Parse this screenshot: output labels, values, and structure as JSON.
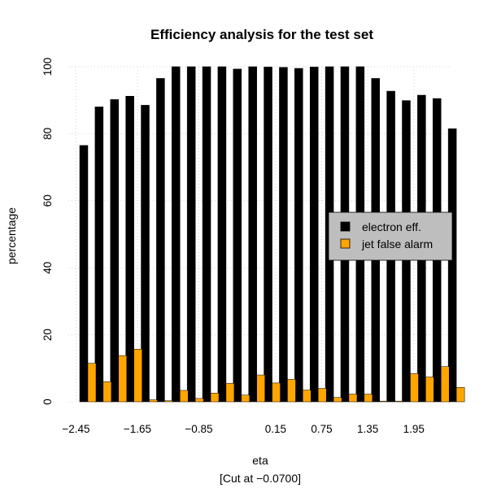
{
  "chart_data": {
    "type": "bar",
    "title": "Efficiency analysis for the test set",
    "xlabel": "eta",
    "subtitle": "[Cut at −0.0700]",
    "ylabel": "percentage",
    "ylim": [
      0,
      100
    ],
    "yticks": [
      "0",
      "20",
      "40",
      "60",
      "80",
      "100"
    ],
    "xtick_labels": [
      {
        "label": "−2.45",
        "index": 0
      },
      {
        "label": "−1.65",
        "index": 4
      },
      {
        "label": "−0.85",
        "index": 8
      },
      {
        "label": "0.15",
        "index": 13
      },
      {
        "label": "0.75",
        "index": 16
      },
      {
        "label": "1.35",
        "index": 19
      },
      {
        "label": "1.95",
        "index": 22
      }
    ],
    "grid": true,
    "legend_position": "right",
    "series": [
      {
        "name": "electron eff.",
        "color": "#000000",
        "values": [
          76.5,
          88,
          90.2,
          91.2,
          88.5,
          96.5,
          100,
          100,
          100,
          100,
          99.3,
          100,
          99.9,
          99.8,
          99.5,
          99.9,
          100,
          100,
          100,
          96.5,
          92.7,
          89.9,
          91.5,
          90.5,
          81.5
        ]
      },
      {
        "name": "jet false alarm",
        "color": "#ffa500",
        "values": [
          11.5,
          6,
          13.8,
          15.7,
          0.6,
          0.3,
          3.4,
          1,
          2.6,
          5.5,
          2,
          8,
          5.6,
          6.7,
          3.5,
          4,
          1.3,
          2.3,
          2.3,
          0.2,
          0.2,
          8.4,
          7.4,
          10.5,
          4.3
        ]
      }
    ]
  }
}
